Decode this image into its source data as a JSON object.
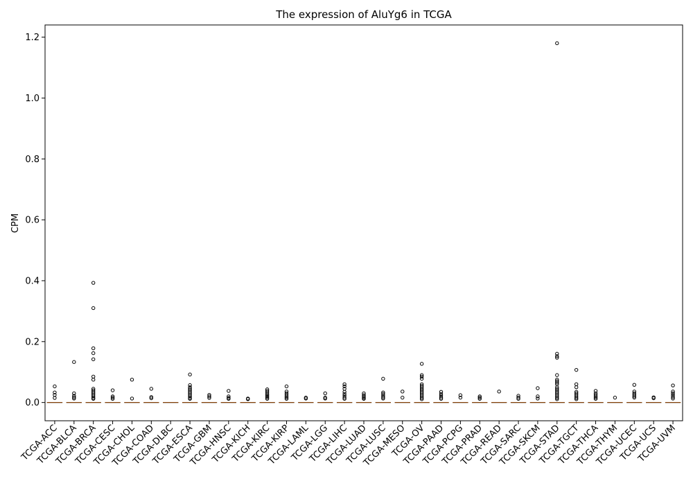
{
  "chart_data": {
    "type": "box",
    "title": "The expression of AluYg6 in TCGA",
    "xlabel": "",
    "ylabel": "CPM",
    "ylim": [
      -0.06,
      1.24
    ],
    "yticks": [
      0.0,
      0.2,
      0.4,
      0.6,
      0.8,
      1.0,
      1.2
    ],
    "ytick_labels": [
      "0.0",
      "0.2",
      "0.4",
      "0.6",
      "0.8",
      "1.0",
      "1.2"
    ],
    "grid": false,
    "categories": [
      "TCGA-ACC",
      "TCGA-BLCA",
      "TCGA-BRCA",
      "TCGA-CESC",
      "TCGA-CHOL",
      "TCGA-COAD",
      "TCGA-DLBC",
      "TCGA-ESCA",
      "TCGA-GBM",
      "TCGA-HNSC",
      "TCGA-KICH",
      "TCGA-KIRC",
      "TCGA-KIRP",
      "TCGA-LAML",
      "TCGA-LGG",
      "TCGA-LIHC",
      "TCGA-LUAD",
      "TCGA-LUSC",
      "TCGA-MESO",
      "TCGA-OV",
      "TCGA-PAAD",
      "TCGA-PCPG",
      "TCGA-PRAD",
      "TCGA-READ",
      "TCGA-SARC",
      "TCGA-SKCM",
      "TCGA-STAD",
      "TCGA-TGCT",
      "TCGA-THCA",
      "TCGA-THYM",
      "TCGA-UCEC",
      "TCGA-UCS",
      "TCGA-UVM"
    ],
    "median": [
      0,
      0,
      0,
      0,
      0,
      0,
      0,
      0,
      0,
      0,
      0,
      0,
      0,
      0,
      0,
      0,
      0,
      0,
      0,
      0,
      0,
      0,
      0,
      0,
      0,
      0,
      0,
      0,
      0,
      0,
      0,
      0,
      0
    ],
    "outliers": [
      [
        0.053,
        0.033,
        0.025,
        0.015
      ],
      [
        0.133,
        0.03,
        0.022,
        0.017,
        0.013
      ],
      [
        0.393,
        0.31,
        0.178,
        0.162,
        0.142,
        0.085,
        0.075,
        0.045,
        0.04,
        0.035,
        0.03,
        0.025,
        0.02,
        0.015,
        0.012
      ],
      [
        0.04,
        0.02,
        0.016,
        0.012
      ],
      [
        0.075,
        0.013
      ],
      [
        0.045,
        0.018,
        0.014
      ],
      [],
      [
        0.092,
        0.057,
        0.05,
        0.045,
        0.04,
        0.035,
        0.03,
        0.025,
        0.02,
        0.015,
        0.012
      ],
      [
        0.025,
        0.02,
        0.015
      ],
      [
        0.038,
        0.02,
        0.015,
        0.012
      ],
      [
        0.013,
        0.011
      ],
      [
        0.043,
        0.038,
        0.033,
        0.028,
        0.024,
        0.02,
        0.016,
        0.012
      ],
      [
        0.053,
        0.036,
        0.03,
        0.025,
        0.02,
        0.016,
        0.012
      ],
      [
        0.016,
        0.013
      ],
      [
        0.03,
        0.016,
        0.013
      ],
      [
        0.06,
        0.053,
        0.045,
        0.035,
        0.028,
        0.022,
        0.016,
        0.012
      ],
      [
        0.03,
        0.024,
        0.019,
        0.015,
        0.012
      ],
      [
        0.078,
        0.033,
        0.028,
        0.022,
        0.017,
        0.013
      ],
      [
        0.036,
        0.016
      ],
      [
        0.127,
        0.09,
        0.085,
        0.078,
        0.06,
        0.055,
        0.05,
        0.045,
        0.04,
        0.035,
        0.03,
        0.025,
        0.02,
        0.015,
        0.011
      ],
      [
        0.035,
        0.028,
        0.022,
        0.016,
        0.012
      ],
      [
        0.024,
        0.016
      ],
      [
        0.02,
        0.016,
        0.012
      ],
      [
        0.036
      ],
      [
        0.022,
        0.016,
        0.012
      ],
      [
        0.047,
        0.02,
        0.013
      ],
      [
        1.18,
        0.16,
        0.152,
        0.147,
        0.09,
        0.075,
        0.07,
        0.065,
        0.06,
        0.05,
        0.045,
        0.04,
        0.035,
        0.03,
        0.025,
        0.02,
        0.015,
        0.011
      ],
      [
        0.107,
        0.06,
        0.05,
        0.035,
        0.03,
        0.025,
        0.02,
        0.015,
        0.011
      ],
      [
        0.038,
        0.03,
        0.025,
        0.02,
        0.016,
        0.012
      ],
      [
        0.016
      ],
      [
        0.058,
        0.036,
        0.03,
        0.025,
        0.02,
        0.016
      ],
      [
        0.017,
        0.014
      ],
      [
        0.056,
        0.036,
        0.03,
        0.024,
        0.018,
        0.013
      ]
    ]
  }
}
